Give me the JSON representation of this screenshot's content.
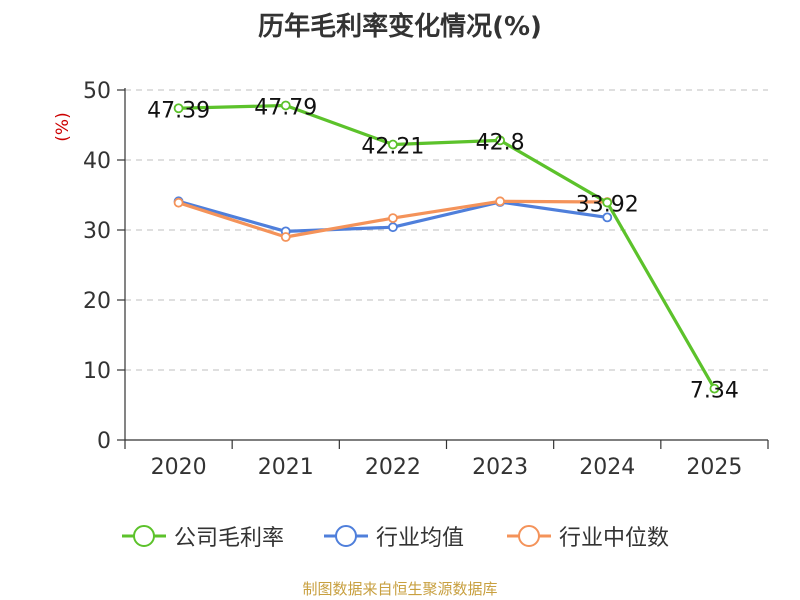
{
  "chart_data": {
    "type": "line",
    "title": "历年毛利率变化情况(%)",
    "ylabel": "(%)",
    "xlabel": "",
    "categories": [
      "2020",
      "2021",
      "2022",
      "2023",
      "2024",
      "2025"
    ],
    "ylim": [
      0,
      50
    ],
    "yticks": [
      0,
      10,
      20,
      30,
      40,
      50
    ],
    "grid": true,
    "legend_position": "bottom",
    "series": [
      {
        "name": "公司毛利率",
        "color": "#5cc22b",
        "values": [
          47.39,
          47.79,
          42.21,
          42.8,
          33.92,
          7.34
        ],
        "labels": [
          "47.39",
          "47.79",
          "42.21",
          "42.8",
          "33.92",
          "7.34"
        ]
      },
      {
        "name": "行业均值",
        "color": "#4f7fdb",
        "values": [
          34.1,
          29.8,
          30.4,
          34.0,
          31.8,
          null
        ]
      },
      {
        "name": "行业中位数",
        "color": "#f4935a",
        "values": [
          33.9,
          29.0,
          31.7,
          34.1,
          34.0,
          null
        ]
      }
    ]
  },
  "source": "制图数据来自恒生聚源数据库"
}
